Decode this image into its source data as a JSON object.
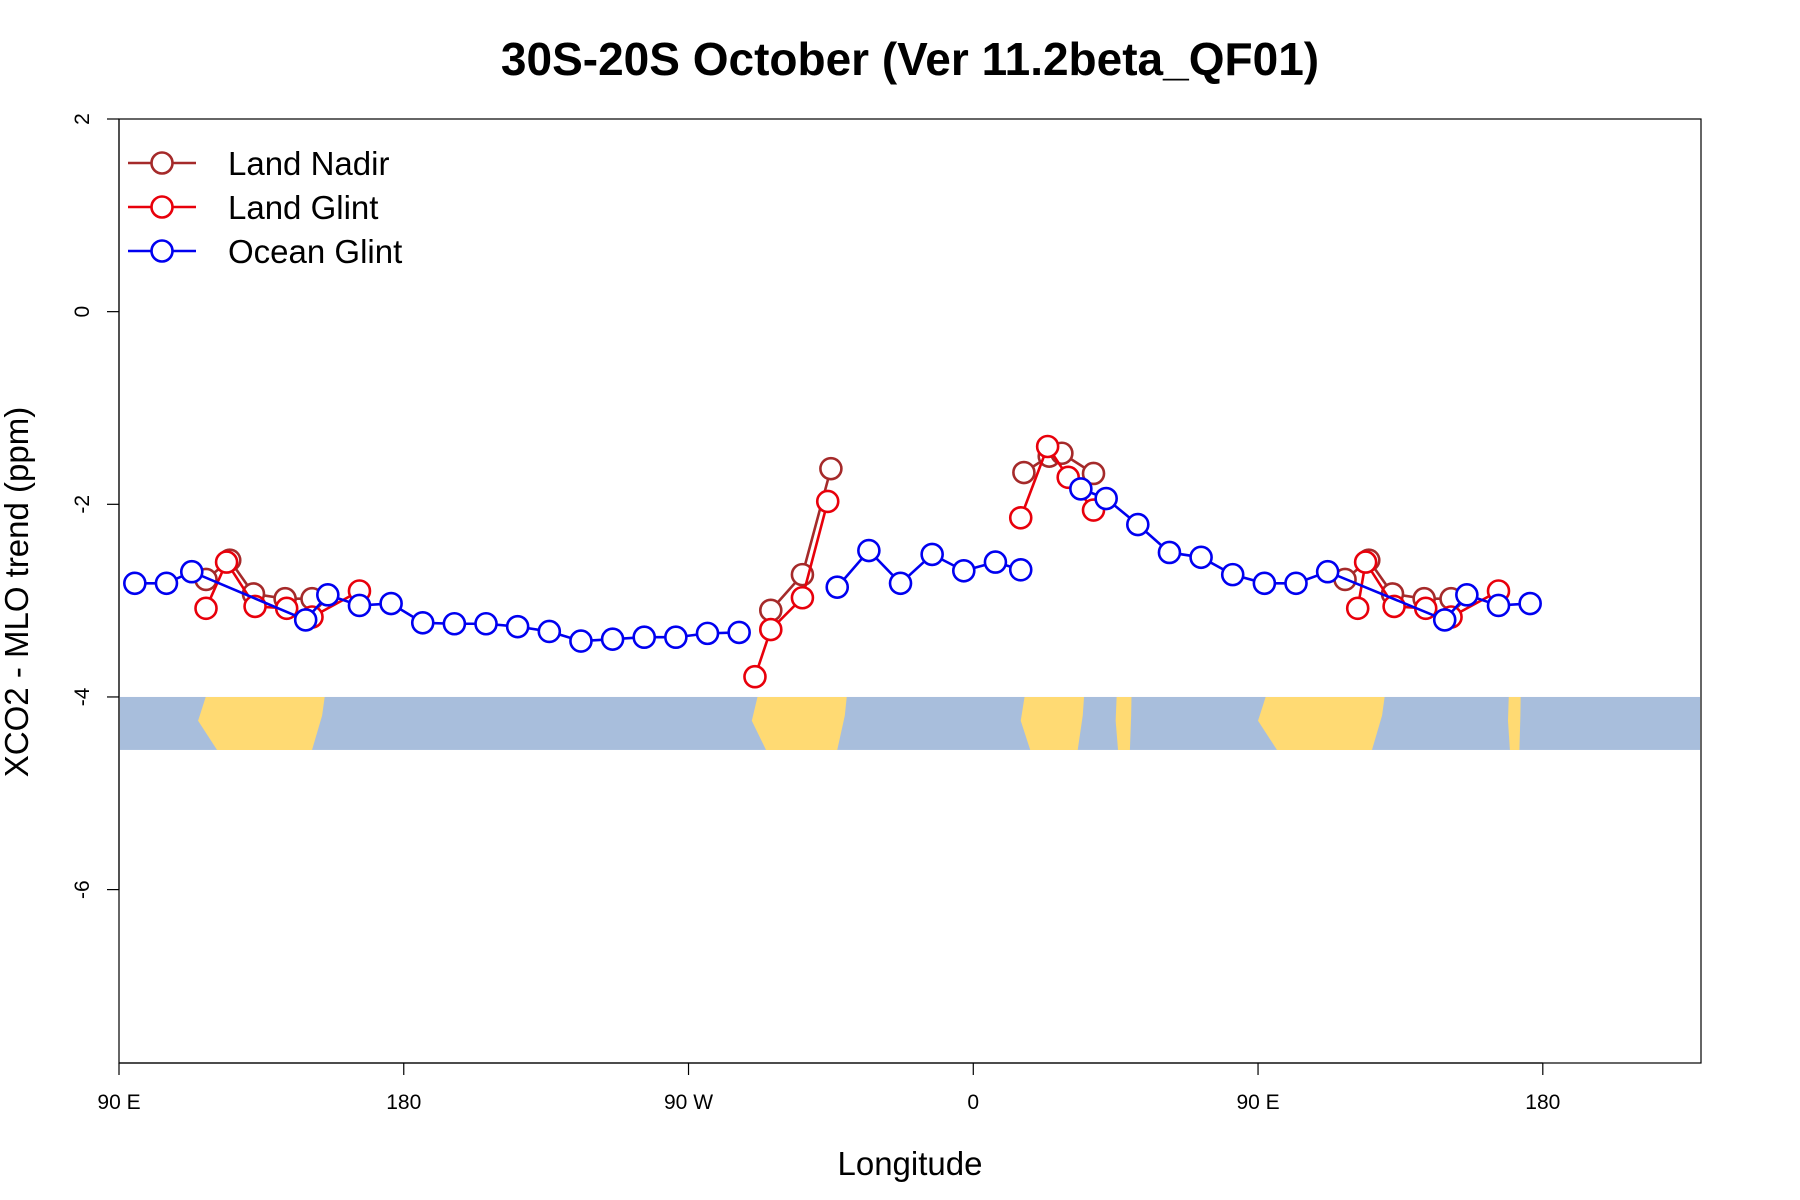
{
  "chart_data": {
    "type": "line",
    "title": "30S-20S October (Ver 11.2beta_QF01)",
    "xlabel": "Longitude",
    "ylabel": "XCO2 - MLO trend (ppm)",
    "xlim": [
      90,
      590
    ],
    "ylim": [
      -7.8,
      2
    ],
    "x_ticks": [
      {
        "value": 90,
        "label": "90 E"
      },
      {
        "value": 180,
        "label": "180"
      },
      {
        "value": 270,
        "label": "90 W"
      },
      {
        "value": 360,
        "label": "0"
      },
      {
        "value": 450,
        "label": "90 E"
      },
      {
        "value": 540,
        "label": "180"
      }
    ],
    "y_ticks": [
      {
        "value": 2,
        "label": "2"
      },
      {
        "value": 0,
        "label": "0"
      },
      {
        "value": -2,
        "label": "-2"
      },
      {
        "value": -4,
        "label": "-4"
      },
      {
        "value": -6,
        "label": "-6"
      }
    ],
    "grid": false,
    "legend_position": "top-left",
    "map_strip": {
      "y_range": [
        -4.55,
        -4.0
      ],
      "ocean_color": "#A8BEDC",
      "land_color": "#FFDA73",
      "land_ranges": [
        [
          115,
          155
        ],
        [
          290,
          320
        ],
        [
          375,
          395
        ],
        [
          405,
          410
        ],
        [
          450,
          490
        ],
        [
          529,
          533
        ]
      ]
    },
    "series": [
      {
        "name": "Land Nadir",
        "color": "#A52A2A",
        "segments": [
          [
            [
              117.5,
              -2.78
            ],
            [
              125,
              -2.58
            ],
            [
              132.5,
              -2.93
            ],
            [
              142.5,
              -2.98
            ],
            [
              151,
              -2.98
            ]
          ],
          [
            [
              296,
              -3.1
            ],
            [
              306,
              -2.73
            ],
            [
              315,
              -1.63
            ]
          ],
          [
            [
              376,
              -1.67
            ],
            [
              384,
              -1.5
            ],
            [
              388,
              -1.47
            ],
            [
              398,
              -1.68
            ]
          ],
          [
            [
              477.5,
              -2.78
            ],
            [
              485,
              -2.58
            ],
            [
              492.5,
              -2.93
            ],
            [
              502.5,
              -2.98
            ],
            [
              511,
              -2.98
            ]
          ]
        ]
      },
      {
        "name": "Land Glint",
        "color": "#E8000B",
        "segments": [
          [
            [
              117.5,
              -3.08
            ],
            [
              124,
              -2.6
            ],
            [
              133,
              -3.06
            ],
            [
              143,
              -3.08
            ],
            [
              151,
              -3.17
            ],
            [
              166,
              -2.9
            ]
          ],
          [
            [
              291,
              -3.79
            ],
            [
              296,
              -3.3
            ],
            [
              306,
              -2.97
            ],
            [
              314,
              -1.97
            ]
          ],
          [
            [
              375,
              -2.14
            ],
            [
              383.5,
              -1.4
            ],
            [
              390,
              -1.72
            ],
            [
              398,
              -2.06
            ]
          ],
          [
            [
              481.5,
              -3.08
            ],
            [
              484,
              -2.6
            ],
            [
              493,
              -3.06
            ],
            [
              503,
              -3.08
            ],
            [
              511,
              -3.17
            ],
            [
              526,
              -2.9
            ]
          ]
        ]
      },
      {
        "name": "Ocean Glint",
        "color": "#0000F0",
        "segments": [
          [
            [
              95,
              -2.82
            ],
            [
              105,
              -2.82
            ],
            [
              113,
              -2.7
            ],
            [
              149,
              -3.2
            ],
            [
              156,
              -2.94
            ],
            [
              166,
              -3.05
            ],
            [
              176,
              -3.03
            ],
            [
              186,
              -3.23
            ],
            [
              196,
              -3.24
            ],
            [
              206,
              -3.24
            ],
            [
              216,
              -3.27
            ],
            [
              226,
              -3.32
            ],
            [
              236,
              -3.42
            ],
            [
              246,
              -3.4
            ],
            [
              256,
              -3.38
            ],
            [
              266,
              -3.38
            ],
            [
              276,
              -3.34
            ],
            [
              286,
              -3.33
            ]
          ],
          [
            [
              317,
              -2.86
            ],
            [
              327,
              -2.48
            ],
            [
              337,
              -2.82
            ],
            [
              347,
              -2.52
            ],
            [
              357,
              -2.69
            ],
            [
              367,
              -2.6
            ],
            [
              375,
              -2.68
            ]
          ],
          [
            [
              394,
              -1.84
            ],
            [
              402,
              -1.94
            ],
            [
              412,
              -2.21
            ],
            [
              422,
              -2.5
            ],
            [
              432,
              -2.55
            ],
            [
              442,
              -2.73
            ],
            [
              452,
              -2.82
            ],
            [
              462,
              -2.82
            ],
            [
              472,
              -2.7
            ],
            [
              509,
              -3.2
            ],
            [
              516,
              -2.94
            ],
            [
              526,
              -3.05
            ],
            [
              536,
              -3.03
            ]
          ]
        ]
      }
    ]
  }
}
